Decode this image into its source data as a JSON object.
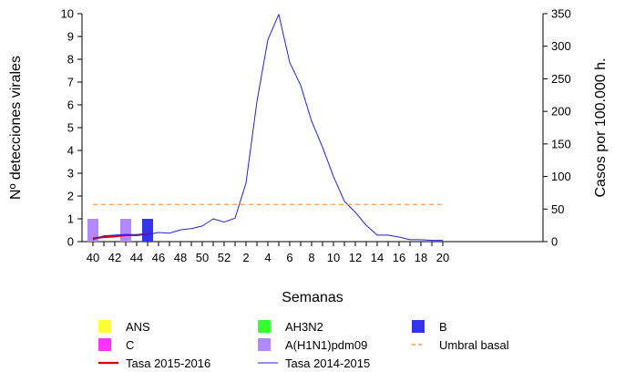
{
  "chart_data": {
    "type": "bar+line",
    "xlabel": "Semanas",
    "ylabel_left": "Nº detecciones virales",
    "ylabel_right": "Casos por 100.000 h.",
    "ylim_left": [
      0,
      10
    ],
    "ylim_right": [
      0,
      350
    ],
    "grid": false,
    "legend_position": "bottom",
    "weeks": [
      40,
      41,
      42,
      43,
      44,
      45,
      46,
      47,
      48,
      49,
      50,
      51,
      52,
      1,
      2,
      3,
      4,
      5,
      6,
      7,
      8,
      9,
      10,
      11,
      12,
      13,
      14,
      15,
      16,
      17,
      18,
      19,
      20
    ],
    "x_tick_labels": [
      "40",
      "42",
      "44",
      "46",
      "48",
      "50",
      "52",
      "2",
      "4",
      "6",
      "8",
      "10",
      "12",
      "14",
      "16",
      "18",
      "20"
    ],
    "y_left_ticks": [
      "0",
      "1",
      "2",
      "3",
      "4",
      "5",
      "6",
      "7",
      "8",
      "9",
      "10"
    ],
    "y_right_ticks": [
      "0",
      "50",
      "100",
      "150",
      "200",
      "250",
      "300",
      "350"
    ],
    "bar_series": [
      {
        "name": "ANS",
        "color": "#ffff33",
        "values": {}
      },
      {
        "name": "C",
        "color": "#ff33ff",
        "values": {}
      },
      {
        "name": "AH3N2",
        "color": "#33ff33",
        "values": {}
      },
      {
        "name": "A(H1N1)pdm09",
        "color": "#b088ff",
        "values": {
          "40": 1,
          "43": 1
        }
      },
      {
        "name": "B",
        "color": "#3333ee",
        "values": {
          "45": 1
        }
      }
    ],
    "line_series": [
      {
        "name": "Tasa 2015-2016",
        "color": "#dd0000",
        "style": "solid",
        "weeks": [
          40,
          41,
          42,
          43,
          44,
          45
        ],
        "values": [
          5,
          7,
          8,
          10,
          10,
          12
        ]
      },
      {
        "name": "Tasa 2014-2015",
        "color": "#2222dd",
        "style": "solid",
        "weeks": [
          40,
          41,
          42,
          43,
          44,
          45,
          46,
          47,
          48,
          49,
          50,
          51,
          52,
          1,
          2,
          3,
          4,
          5,
          6,
          7,
          8,
          9,
          10,
          11,
          12,
          13,
          14,
          15,
          16,
          17,
          18,
          19,
          20
        ],
        "values": [
          3,
          9,
          10,
          11,
          10,
          11,
          14,
          13,
          18,
          20,
          24,
          35,
          30,
          36,
          90,
          215,
          310,
          349,
          275,
          240,
          185,
          145,
          100,
          62,
          45,
          25,
          10,
          10,
          7,
          3,
          3,
          2,
          2
        ]
      },
      {
        "name": "Umbral basal",
        "color": "#ff9944",
        "style": "dashed",
        "constant": 57
      }
    ],
    "legend": [
      {
        "label": "ANS",
        "kind": "box",
        "color": "#ffff33"
      },
      {
        "label": "AH3N2",
        "kind": "box",
        "color": "#33ff33"
      },
      {
        "label": "B",
        "kind": "box",
        "color": "#3333ee"
      },
      {
        "label": "C",
        "kind": "box",
        "color": "#ff33ff"
      },
      {
        "label": "A(H1N1)pdm09",
        "kind": "box",
        "color": "#b088ff"
      },
      {
        "label": "Umbral basal",
        "kind": "dash",
        "color": "#ff9944"
      },
      {
        "label": "Tasa 2015-2016",
        "kind": "line-thick",
        "color": "#dd0000"
      },
      {
        "label": "Tasa 2014-2015",
        "kind": "line-thin",
        "color": "#2222dd"
      }
    ]
  }
}
